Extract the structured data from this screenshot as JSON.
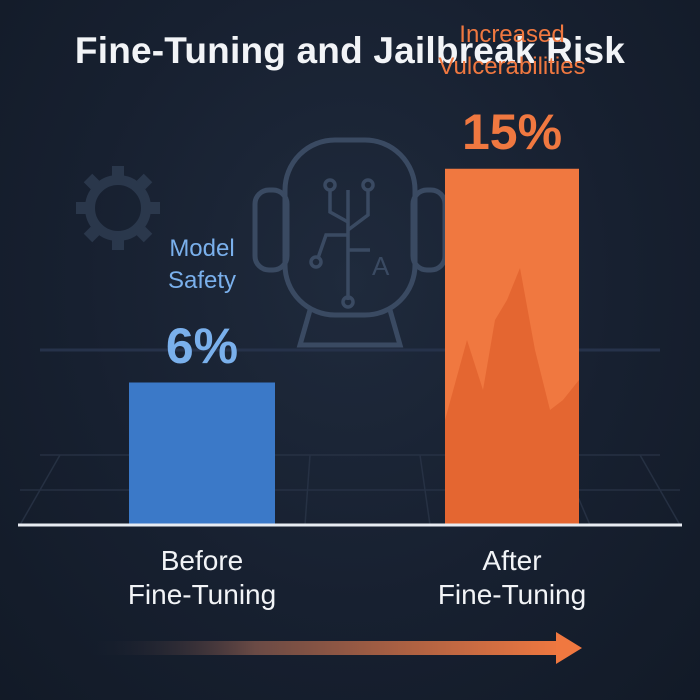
{
  "title": "Fine-Tuning and Jailbreak Risk",
  "colors": {
    "background": "#172030",
    "before_bar": "#3b79c8",
    "after_bar": "#f07840",
    "before_text": "#7ab0ec",
    "after_text": "#f07840",
    "baseline": "#e8ecf2",
    "icon_stroke": "#3a4a62"
  },
  "icons": [
    "robot-head-circuit-icon",
    "gear-icon",
    "progress-arrow-icon"
  ],
  "chart_data": {
    "type": "bar",
    "title": "Fine-Tuning and Jailbreak Risk",
    "categories": [
      "Before\nFine-Tuning",
      "After\nFine-Tuning"
    ],
    "values": [
      6,
      15
    ],
    "value_labels": [
      "6%",
      "15%"
    ],
    "annotations": [
      "Model\nSafety",
      "Increased\nVulcerabilities"
    ],
    "ylim": [
      0,
      20
    ],
    "grid": false,
    "legend": "none"
  }
}
